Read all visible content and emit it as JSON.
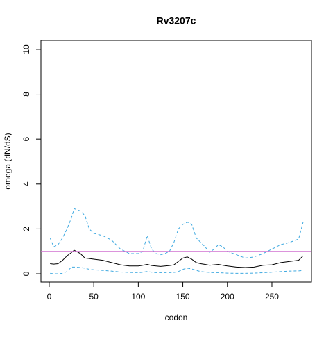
{
  "chart_data": {
    "type": "line",
    "title": "Rv3207c",
    "x_label": "codon",
    "y_label": "omega (dN/dS)",
    "x": [
      1,
      5,
      10,
      15,
      20,
      25,
      28,
      35,
      40,
      45,
      50,
      60,
      70,
      80,
      90,
      100,
      105,
      110,
      115,
      120,
      125,
      130,
      135,
      140,
      145,
      150,
      155,
      160,
      165,
      170,
      175,
      180,
      185,
      190,
      195,
      200,
      210,
      220,
      230,
      240,
      250,
      260,
      270,
      280,
      285
    ],
    "series": [
      {
        "color": "#000000",
        "dash": false,
        "values": [
          0.45,
          0.43,
          0.45,
          0.6,
          0.8,
          0.95,
          1.05,
          0.9,
          0.7,
          0.68,
          0.65,
          0.6,
          0.5,
          0.4,
          0.35,
          0.35,
          0.38,
          0.42,
          0.37,
          0.35,
          0.33,
          0.35,
          0.37,
          0.4,
          0.55,
          0.7,
          0.75,
          0.65,
          0.5,
          0.45,
          0.42,
          0.38,
          0.4,
          0.42,
          0.38,
          0.35,
          0.3,
          0.28,
          0.3,
          0.38,
          0.4,
          0.5,
          0.55,
          0.6,
          0.8
        ]
      },
      {
        "color": "#3fa9e0",
        "dash": true,
        "values": [
          1.6,
          1.2,
          1.3,
          1.6,
          2.0,
          2.5,
          2.9,
          2.8,
          2.6,
          2.0,
          1.8,
          1.7,
          1.5,
          1.1,
          0.9,
          0.9,
          1.0,
          1.7,
          1.1,
          0.9,
          0.85,
          0.9,
          1.0,
          1.4,
          2.0,
          2.2,
          2.3,
          2.2,
          1.6,
          1.4,
          1.2,
          0.95,
          1.1,
          1.3,
          1.2,
          1.0,
          0.85,
          0.7,
          0.75,
          0.9,
          1.1,
          1.3,
          1.4,
          1.55,
          2.3
        ]
      },
      {
        "color": "#3fa9e0",
        "dash": true,
        "values": [
          0.02,
          0.0,
          0.0,
          0.02,
          0.1,
          0.3,
          0.3,
          0.28,
          0.25,
          0.2,
          0.18,
          0.15,
          0.12,
          0.08,
          0.06,
          0.05,
          0.07,
          0.1,
          0.07,
          0.05,
          0.05,
          0.05,
          0.05,
          0.06,
          0.1,
          0.2,
          0.25,
          0.22,
          0.15,
          0.1,
          0.08,
          0.06,
          0.05,
          0.05,
          0.04,
          0.03,
          0.02,
          0.02,
          0.03,
          0.05,
          0.07,
          0.1,
          0.12,
          0.13,
          0.15
        ]
      }
    ],
    "reference_line": {
      "value": 1,
      "color": "#d070d0"
    },
    "xlim": [
      -9.3,
      294.4
    ],
    "ylim": [
      -0.37,
      10.4
    ],
    "xticks": [
      0,
      50,
      100,
      150,
      200,
      250
    ],
    "yticks": [
      0,
      2,
      4,
      6,
      8,
      10
    ]
  }
}
